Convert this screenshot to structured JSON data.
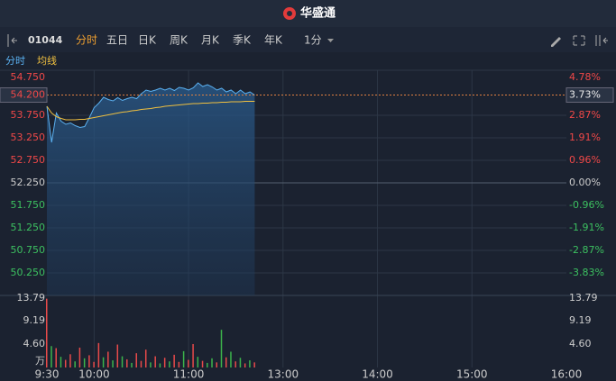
{
  "header": {
    "title": "华盛通"
  },
  "toolbar": {
    "code": "01044",
    "tabs": [
      "分时",
      "五日",
      "日K",
      "周K",
      "月K",
      "季K",
      "年K"
    ],
    "active": 0,
    "interval": "1分"
  },
  "chart_data": [
    {
      "type": "line",
      "prev_close": 52.25,
      "last_price": {
        "value": 54.2,
        "label": "54.200"
      },
      "last_change": {
        "value": 3.73,
        "label": "3.73%"
      },
      "xlim": [
        0,
        330
      ],
      "xticks": [
        30,
        90,
        150,
        210,
        270
      ],
      "ylim": [
        49.75,
        54.75
      ],
      "yticks": [
        {
          "value": 54.75,
          "label": "54.750"
        },
        {
          "value": 53.75,
          "label": "53.750"
        },
        {
          "value": 53.25,
          "label": "53.250"
        },
        {
          "value": 52.75,
          "label": "52.750"
        },
        {
          "value": 52.25,
          "label": "52.250"
        },
        {
          "value": 51.75,
          "label": "51.750"
        },
        {
          "value": 51.25,
          "label": "51.250"
        },
        {
          "value": 50.75,
          "label": "50.750"
        },
        {
          "value": 50.25,
          "label": "50.250"
        }
      ],
      "y2lim": [
        -4.78,
        4.78
      ],
      "y2ticks": [
        {
          "value": 4.78,
          "label": "4.78%"
        },
        {
          "value": 2.87,
          "label": "2.87%"
        },
        {
          "value": 1.91,
          "label": "1.91%"
        },
        {
          "value": 0.96,
          "label": "0.96%"
        },
        {
          "value": 0,
          "label": "0.00%"
        },
        {
          "value": -0.96,
          "label": "-0.96%"
        },
        {
          "value": -1.91,
          "label": "-1.91%"
        },
        {
          "value": -2.87,
          "label": "-2.87%"
        },
        {
          "value": -3.83,
          "label": "-3.83%"
        }
      ],
      "x": [
        0,
        3,
        6,
        9,
        12,
        15,
        18,
        21,
        24,
        27,
        30,
        33,
        36,
        39,
        42,
        45,
        48,
        51,
        54,
        57,
        60,
        63,
        66,
        69,
        72,
        75,
        78,
        81,
        84,
        87,
        90,
        93,
        96,
        99,
        102,
        105,
        108,
        111,
        114,
        117,
        120,
        123,
        126,
        129,
        132
      ],
      "series": [
        {
          "name": "分时",
          "color": "#5ab0f0",
          "values": [
            53.95,
            53.15,
            53.8,
            53.62,
            53.55,
            53.58,
            53.52,
            53.48,
            53.5,
            53.7,
            53.92,
            54.02,
            54.15,
            54.1,
            54.07,
            54.14,
            54.08,
            54.12,
            54.15,
            54.12,
            54.23,
            54.31,
            54.28,
            54.31,
            54.35,
            54.31,
            54.35,
            54.3,
            54.37,
            54.35,
            54.31,
            54.36,
            54.47,
            54.39,
            54.43,
            54.38,
            54.31,
            54.35,
            54.27,
            54.31,
            54.23,
            54.31,
            54.23,
            54.27,
            54.2
          ]
        },
        {
          "name": "均线",
          "color": "#f0c040",
          "values": [
            53.95,
            53.8,
            53.72,
            53.68,
            53.65,
            53.65,
            53.65,
            53.66,
            53.66,
            53.68,
            53.7,
            53.72,
            53.74,
            53.76,
            53.78,
            53.8,
            53.82,
            53.83,
            53.85,
            53.86,
            53.88,
            53.89,
            53.9,
            53.92,
            53.93,
            53.95,
            53.96,
            53.97,
            53.98,
            53.99,
            54.0,
            54.01,
            54.01,
            54.02,
            54.02,
            54.03,
            54.03,
            54.04,
            54.04,
            54.05,
            54.05,
            54.05,
            54.06,
            54.06,
            54.06
          ]
        }
      ]
    },
    {
      "type": "bar",
      "unit": "万",
      "xlim": [
        0,
        330
      ],
      "xticks": [
        {
          "value": 0,
          "label": "9:30"
        },
        {
          "value": 30,
          "label": "10:00"
        },
        {
          "value": 90,
          "label": "11:00"
        },
        {
          "value": 150,
          "label": "13:00"
        },
        {
          "value": 210,
          "label": "14:00"
        },
        {
          "value": 270,
          "label": "15:00"
        },
        {
          "value": 330,
          "label": "16:00"
        }
      ],
      "ylim": [
        0,
        13.79
      ],
      "yticks": [
        13.79,
        9.19,
        {
          "value": 4.6,
          "label": "4.60"
        }
      ],
      "x": [
        0,
        3,
        6,
        9,
        12,
        15,
        18,
        21,
        24,
        27,
        30,
        33,
        36,
        39,
        42,
        45,
        48,
        51,
        54,
        57,
        60,
        63,
        66,
        69,
        72,
        75,
        78,
        81,
        84,
        87,
        90,
        93,
        96,
        99,
        102,
        105,
        108,
        111,
        114,
        117,
        120,
        123,
        126,
        129,
        132
      ],
      "values": [
        13.5,
        4.2,
        3.8,
        2.1,
        1.5,
        2.6,
        1.2,
        3.9,
        1.8,
        2.4,
        1.1,
        4.8,
        2.0,
        3.1,
        1.4,
        4.5,
        2.2,
        1.6,
        0.9,
        2.8,
        1.3,
        3.5,
        1.0,
        2.2,
        0.8,
        1.9,
        1.2,
        2.5,
        1.1,
        3.2,
        1.5,
        4.6,
        2.1,
        1.3,
        0.9,
        1.8,
        1.0,
        7.4,
        2.0,
        3.1,
        1.2,
        1.9,
        0.8,
        1.4,
        1.0
      ],
      "colors": [
        "#e84a4a",
        "#3cb44b",
        "#e84a4a",
        "#3cb44b",
        "#e84a4a",
        "#e84a4a",
        "#3cb44b",
        "#e84a4a",
        "#3cb44b",
        "#e84a4a",
        "#e84a4a",
        "#e84a4a",
        "#3cb44b",
        "#e84a4a",
        "#3cb44b",
        "#e84a4a",
        "#3cb44b",
        "#e84a4a",
        "#3cb44b",
        "#e84a4a",
        "#e84a4a",
        "#e84a4a",
        "#3cb44b",
        "#e84a4a",
        "#3cb44b",
        "#e84a4a",
        "#3cb44b",
        "#e84a4a",
        "#e84a4a",
        "#3cb44b",
        "#e84a4a",
        "#e84a4a",
        "#3cb44b",
        "#e84a4a",
        "#3cb44b",
        "#3cb44b",
        "#e84a4a",
        "#3cb44b",
        "#e84a4a",
        "#3cb44b",
        "#e84a4a",
        "#3cb44b",
        "#e84a4a",
        "#3cb44b",
        "#e84a4a"
      ]
    }
  ]
}
